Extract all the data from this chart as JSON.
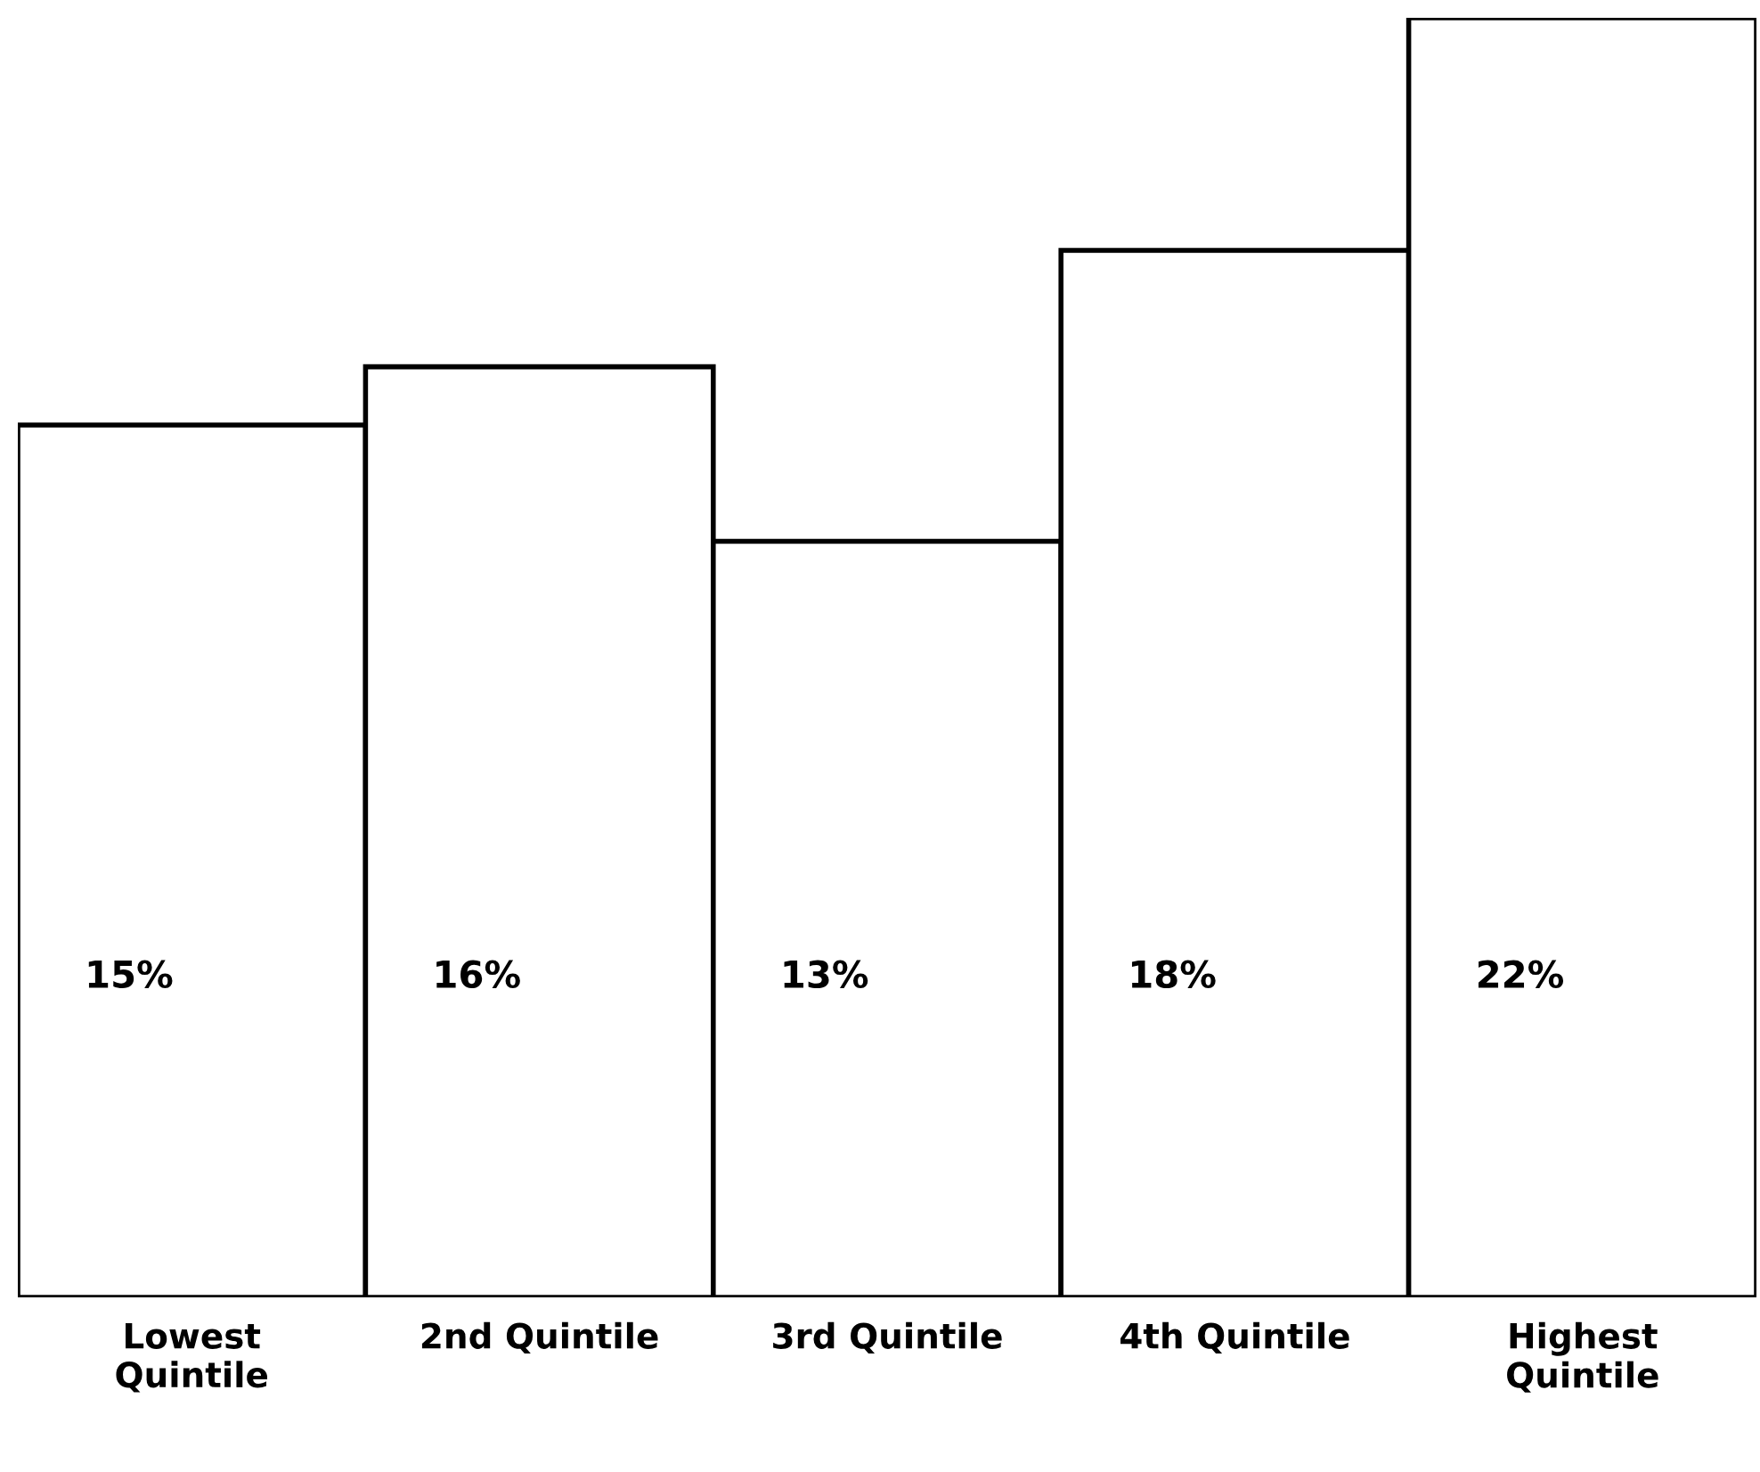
{
  "chart_data": {
    "type": "bar",
    "categories": [
      "Lowest\nQuintile",
      "2nd Quintile",
      "3rd Quintile",
      "4th Quintile",
      "Highest\nQuintile"
    ],
    "values": [
      15,
      16,
      13,
      18,
      22
    ],
    "value_labels": [
      "15%",
      "16%",
      "13%",
      "18%",
      "22%"
    ],
    "color": "#ffffff",
    "ylim": [
      0,
      22
    ],
    "tick_labels": "x",
    "grid": false,
    "legend": false
  }
}
